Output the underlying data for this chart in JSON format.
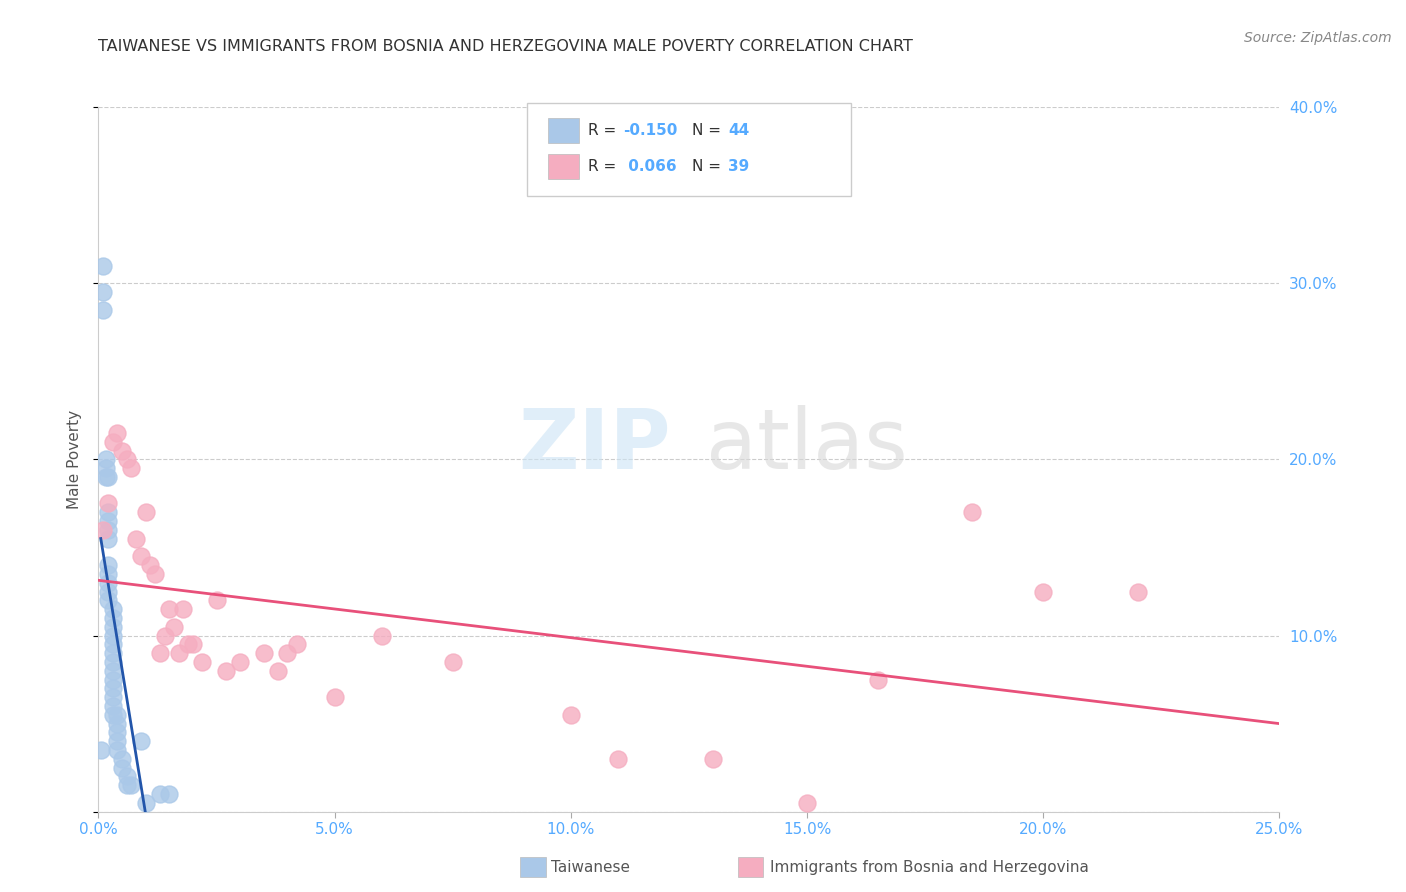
{
  "title": "TAIWANESE VS IMMIGRANTS FROM BOSNIA AND HERZEGOVINA MALE POVERTY CORRELATION CHART",
  "source": "Source: ZipAtlas.com",
  "ylabel": "Male Poverty",
  "xlim": [
    0.0,
    0.25
  ],
  "ylim": [
    0.0,
    0.4
  ],
  "xticks": [
    0.0,
    0.05,
    0.1,
    0.15,
    0.2,
    0.25
  ],
  "yticks": [
    0.0,
    0.1,
    0.2,
    0.3,
    0.4
  ],
  "xticklabels": [
    "0.0%",
    "5.0%",
    "10.0%",
    "15.0%",
    "20.0%",
    "25.0%"
  ],
  "yticklabels": [
    "",
    "10.0%",
    "20.0%",
    "30.0%",
    "40.0%"
  ],
  "color_taiwanese": "#aac8e8",
  "color_bosnian": "#f5adc0",
  "color_line_taiwanese": "#2255aa",
  "color_line_bosnian": "#e8507a",
  "color_axis_labels": "#55aaff",
  "watermark_zip": "ZIP",
  "watermark_atlas": "atlas",
  "taiwanese_x": [
    0.0005,
    0.001,
    0.001,
    0.001,
    0.0015,
    0.0015,
    0.0015,
    0.002,
    0.002,
    0.002,
    0.002,
    0.002,
    0.002,
    0.002,
    0.002,
    0.002,
    0.002,
    0.003,
    0.003,
    0.003,
    0.003,
    0.003,
    0.003,
    0.003,
    0.003,
    0.003,
    0.003,
    0.003,
    0.003,
    0.003,
    0.004,
    0.004,
    0.004,
    0.004,
    0.004,
    0.005,
    0.005,
    0.006,
    0.006,
    0.007,
    0.009,
    0.01,
    0.013,
    0.015
  ],
  "taiwanese_y": [
    0.035,
    0.295,
    0.31,
    0.285,
    0.195,
    0.19,
    0.2,
    0.165,
    0.19,
    0.17,
    0.16,
    0.155,
    0.14,
    0.135,
    0.13,
    0.125,
    0.12,
    0.115,
    0.11,
    0.105,
    0.1,
    0.095,
    0.09,
    0.085,
    0.08,
    0.075,
    0.07,
    0.065,
    0.06,
    0.055,
    0.055,
    0.05,
    0.045,
    0.04,
    0.035,
    0.03,
    0.025,
    0.02,
    0.015,
    0.015,
    0.04,
    0.005,
    0.01,
    0.01
  ],
  "bosnian_x": [
    0.001,
    0.002,
    0.003,
    0.004,
    0.005,
    0.006,
    0.007,
    0.008,
    0.009,
    0.01,
    0.011,
    0.012,
    0.013,
    0.014,
    0.015,
    0.016,
    0.017,
    0.018,
    0.019,
    0.02,
    0.022,
    0.025,
    0.027,
    0.03,
    0.035,
    0.038,
    0.04,
    0.042,
    0.05,
    0.06,
    0.075,
    0.1,
    0.11,
    0.13,
    0.15,
    0.165,
    0.185,
    0.2,
    0.22
  ],
  "bosnian_y": [
    0.16,
    0.175,
    0.21,
    0.215,
    0.205,
    0.2,
    0.195,
    0.155,
    0.145,
    0.17,
    0.14,
    0.135,
    0.09,
    0.1,
    0.115,
    0.105,
    0.09,
    0.115,
    0.095,
    0.095,
    0.085,
    0.12,
    0.08,
    0.085,
    0.09,
    0.08,
    0.09,
    0.095,
    0.065,
    0.1,
    0.085,
    0.055,
    0.03,
    0.03,
    0.005,
    0.075,
    0.17,
    0.125,
    0.125
  ]
}
